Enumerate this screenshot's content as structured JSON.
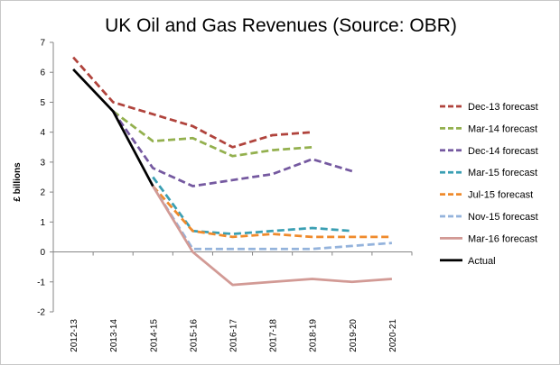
{
  "chart_data": {
    "type": "line",
    "title": "UK Oil and Gas Revenues (Source: OBR)",
    "xlabel": "",
    "ylabel": "£ billions",
    "ylim": [
      -2,
      7
    ],
    "yticks": [
      -2,
      -1,
      0,
      1,
      2,
      3,
      4,
      5,
      6,
      7
    ],
    "grid": false,
    "legend_position": "right",
    "categories": [
      "2012-13",
      "2013-14",
      "2014-15",
      "2015-16",
      "2016-17",
      "2017-18",
      "2018-19",
      "2019-20",
      "2020-21"
    ],
    "series": [
      {
        "name": "Dec-13 forecast",
        "color": "#b0433c",
        "dashed": true,
        "values": [
          6.5,
          5.0,
          4.6,
          4.2,
          3.5,
          3.9,
          4.0,
          null,
          null
        ]
      },
      {
        "name": "Mar-14 forecast",
        "color": "#93b04e",
        "dashed": true,
        "values": [
          null,
          4.7,
          3.7,
          3.8,
          3.2,
          3.4,
          3.5,
          null,
          null
        ]
      },
      {
        "name": "Dec-14 forecast",
        "color": "#7559a0",
        "dashed": true,
        "values": [
          null,
          4.7,
          2.8,
          2.2,
          2.4,
          2.6,
          3.1,
          2.7,
          null
        ]
      },
      {
        "name": "Mar-15 forecast",
        "color": "#3a9fb3",
        "dashed": true,
        "values": [
          null,
          null,
          2.5,
          0.7,
          0.6,
          0.7,
          0.8,
          0.7,
          null
        ]
      },
      {
        "name": "Jul-15 forecast",
        "color": "#ef8a2b",
        "dashed": true,
        "values": [
          null,
          null,
          2.2,
          0.7,
          0.5,
          0.6,
          0.5,
          0.5,
          0.5
        ]
      },
      {
        "name": "Nov-15 forecast",
        "color": "#94b3dc",
        "dashed": true,
        "values": [
          null,
          null,
          2.2,
          0.1,
          0.1,
          0.1,
          0.1,
          0.2,
          0.3
        ]
      },
      {
        "name": "Mar-16 forecast",
        "color": "#d29a95",
        "dashed": false,
        "values": [
          null,
          null,
          2.2,
          0.0,
          -1.1,
          -1.0,
          -0.9,
          -1.0,
          -0.9
        ]
      },
      {
        "name": "Actual",
        "color": "#000000",
        "dashed": false,
        "values": [
          6.1,
          4.7,
          2.2,
          null,
          null,
          null,
          null,
          null,
          null
        ]
      }
    ]
  }
}
